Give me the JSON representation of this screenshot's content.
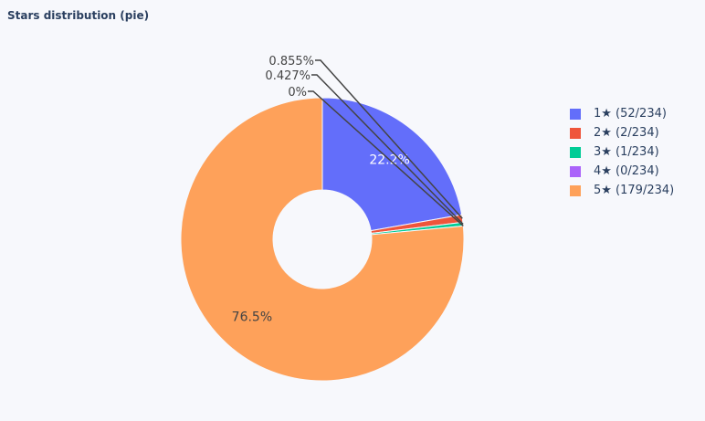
{
  "chart_data": {
    "type": "pie",
    "title": "Stars distribution (pie)",
    "hole": true,
    "legend_position": "right",
    "categories": [
      "1★ (52/234)",
      "2★ (2/234)",
      "3★ (1/234)",
      "4★ (0/234)",
      "5★ (179/234)"
    ],
    "values": [
      52,
      2,
      1,
      0,
      179
    ],
    "colors": [
      "#636efa",
      "#ef553b",
      "#00cc96",
      "#ab63fa",
      "#fea15a"
    ],
    "labels": [
      "22.2%",
      "0.855%",
      "0.427%",
      "0%",
      "76.5%"
    ]
  }
}
